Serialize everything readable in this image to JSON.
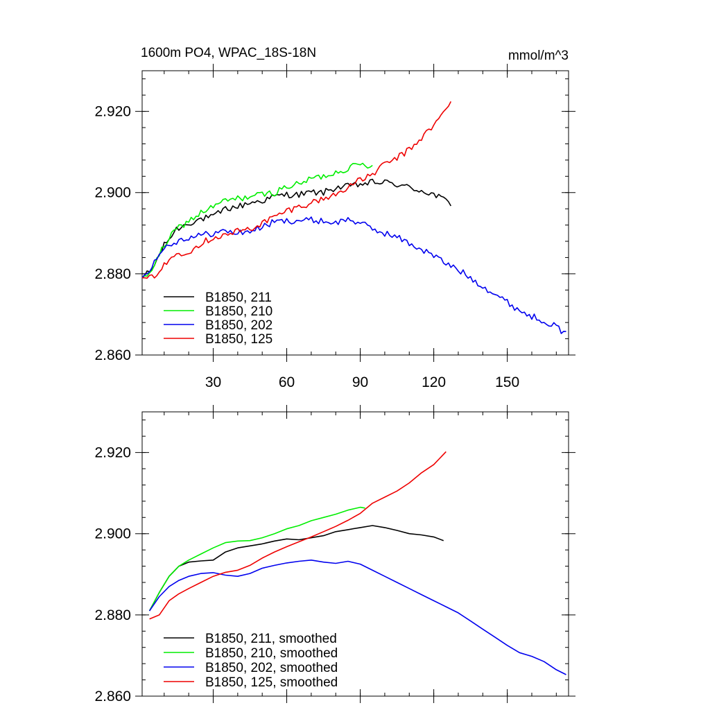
{
  "figure_title": "1600m PO4, WPAC_18S-18N",
  "units": "mmol/m^3",
  "chart_data": [
    {
      "type": "line",
      "title": "1600m PO4, WPAC_18S-18N",
      "units": "mmol/m^3",
      "xlim": [
        1,
        175
      ],
      "ylim": [
        2.86,
        2.93
      ],
      "x_ticks": [
        30,
        60,
        90,
        120,
        150
      ],
      "x_ticklabels": [
        "30",
        "60",
        "90",
        "120",
        "150"
      ],
      "y_ticks": [
        2.86,
        2.88,
        2.9,
        2.92
      ],
      "y_ticklabels": [
        "2.860",
        "2.880",
        "2.900",
        "2.920"
      ],
      "legend_position": "bottom-left",
      "noise": true,
      "series": [
        {
          "name": "B1850, 211",
          "color": "#000000",
          "points": [
            [
              1,
              2.879
            ],
            [
              5,
              2.881
            ],
            [
              10,
              2.887
            ],
            [
              15,
              2.891
            ],
            [
              20,
              2.8925
            ],
            [
              25,
              2.8935
            ],
            [
              30,
              2.894
            ],
            [
              35,
              2.896
            ],
            [
              40,
              2.8965
            ],
            [
              45,
              2.8975
            ],
            [
              50,
              2.898
            ],
            [
              55,
              2.899
            ],
            [
              60,
              2.8995
            ],
            [
              65,
              2.8995
            ],
            [
              70,
              2.9
            ],
            [
              75,
              2.9
            ],
            [
              80,
              2.9012
            ],
            [
              85,
              2.9015
            ],
            [
              90,
              2.902
            ],
            [
              95,
              2.9025
            ],
            [
              100,
              2.9025
            ],
            [
              105,
              2.902
            ],
            [
              110,
              2.9012
            ],
            [
              115,
              2.9005
            ],
            [
              120,
              2.8995
            ],
            [
              125,
              2.898
            ],
            [
              127,
              2.897
            ]
          ]
        },
        {
          "name": "B1850, 210",
          "color": "#00ee00",
          "points": [
            [
              1,
              2.879
            ],
            [
              5,
              2.881
            ],
            [
              10,
              2.887
            ],
            [
              15,
              2.891
            ],
            [
              20,
              2.893
            ],
            [
              25,
              2.895
            ],
            [
              30,
              2.8965
            ],
            [
              35,
              2.898
            ],
            [
              40,
              2.8985
            ],
            [
              45,
              2.899
            ],
            [
              50,
              2.8995
            ],
            [
              55,
              2.9
            ],
            [
              60,
              2.9015
            ],
            [
              65,
              2.902
            ],
            [
              70,
              2.9035
            ],
            [
              75,
              2.904
            ],
            [
              80,
              2.905
            ],
            [
              85,
              2.906
            ],
            [
              90,
              2.907
            ],
            [
              95,
              2.9065
            ]
          ]
        },
        {
          "name": "B1850, 202",
          "color": "#0000ee",
          "points": [
            [
              1,
              2.879
            ],
            [
              5,
              2.882
            ],
            [
              10,
              2.8865
            ],
            [
              15,
              2.888
            ],
            [
              20,
              2.889
            ],
            [
              25,
              2.8895
            ],
            [
              30,
              2.89
            ],
            [
              35,
              2.8905
            ],
            [
              40,
              2.89
            ],
            [
              45,
              2.8905
            ],
            [
              50,
              2.8915
            ],
            [
              55,
              2.8928
            ],
            [
              60,
              2.893
            ],
            [
              65,
              2.8932
            ],
            [
              70,
              2.8932
            ],
            [
              75,
              2.893
            ],
            [
              80,
              2.8925
            ],
            [
              85,
              2.8935
            ],
            [
              90,
              2.8925
            ],
            [
              95,
              2.891
            ],
            [
              100,
              2.89
            ],
            [
              105,
              2.889
            ],
            [
              110,
              2.8875
            ],
            [
              115,
              2.886
            ],
            [
              120,
              2.8845
            ],
            [
              125,
              2.8825
            ],
            [
              130,
              2.881
            ],
            [
              135,
              2.879
            ],
            [
              140,
              2.877
            ],
            [
              145,
              2.875
            ],
            [
              150,
              2.873
            ],
            [
              155,
              2.871
            ],
            [
              160,
              2.8695
            ],
            [
              165,
              2.8685
            ],
            [
              170,
              2.867
            ],
            [
              174,
              2.865
            ]
          ]
        },
        {
          "name": "B1850, 125",
          "color": "#ee0000",
          "points": [
            [
              1,
              2.879
            ],
            [
              5,
              2.879
            ],
            [
              10,
              2.882
            ],
            [
              15,
              2.885
            ],
            [
              20,
              2.8855
            ],
            [
              25,
              2.8875
            ],
            [
              30,
              2.889
            ],
            [
              35,
              2.8895
            ],
            [
              40,
              2.8905
            ],
            [
              45,
              2.891
            ],
            [
              50,
              2.8925
            ],
            [
              55,
              2.894
            ],
            [
              60,
              2.8955
            ],
            [
              65,
              2.8965
            ],
            [
              70,
              2.8975
            ],
            [
              75,
              2.8985
            ],
            [
              80,
              2.8995
            ],
            [
              85,
              2.9015
            ],
            [
              90,
              2.903
            ],
            [
              95,
              2.9045
            ],
            [
              100,
              2.907
            ],
            [
              105,
              2.9085
            ],
            [
              110,
              2.9105
            ],
            [
              115,
              2.9135
            ],
            [
              120,
              2.9165
            ],
            [
              125,
              2.9205
            ],
            [
              127,
              2.922
            ]
          ]
        }
      ]
    },
    {
      "type": "line",
      "title": "",
      "xlim": [
        1,
        175
      ],
      "ylim": [
        2.86,
        2.93
      ],
      "x_ticks": [
        30,
        60,
        90,
        120,
        150
      ],
      "x_ticklabels": [],
      "y_ticks": [
        2.86,
        2.88,
        2.9,
        2.92
      ],
      "y_ticklabels": [
        "2.860",
        "2.880",
        "2.900",
        "2.920"
      ],
      "legend_position": "bottom-left",
      "noise": false,
      "series": [
        {
          "name": "B1850, 211, smoothed",
          "color": "#000000",
          "points": [
            [
              4,
              2.881
            ],
            [
              8,
              2.8855
            ],
            [
              12,
              2.8895
            ],
            [
              16,
              2.892
            ],
            [
              20,
              2.893
            ],
            [
              25,
              2.8933
            ],
            [
              30,
              2.8935
            ],
            [
              35,
              2.8955
            ],
            [
              40,
              2.8965
            ],
            [
              45,
              2.897
            ],
            [
              50,
              2.8975
            ],
            [
              55,
              2.8982
            ],
            [
              60,
              2.8987
            ],
            [
              65,
              2.8985
            ],
            [
              70,
              2.899
            ],
            [
              75,
              2.8995
            ],
            [
              80,
              2.9005
            ],
            [
              85,
              2.901
            ],
            [
              90,
              2.9015
            ],
            [
              95,
              2.902
            ],
            [
              100,
              2.9015
            ],
            [
              105,
              2.9008
            ],
            [
              110,
              2.9
            ],
            [
              115,
              2.8997
            ],
            [
              120,
              2.8992
            ],
            [
              124,
              2.8983
            ]
          ]
        },
        {
          "name": "B1850, 210, smoothed",
          "color": "#00ee00",
          "points": [
            [
              4,
              2.881
            ],
            [
              8,
              2.8855
            ],
            [
              12,
              2.8895
            ],
            [
              16,
              2.892
            ],
            [
              20,
              2.8935
            ],
            [
              25,
              2.895
            ],
            [
              30,
              2.8965
            ],
            [
              35,
              2.8978
            ],
            [
              40,
              2.8982
            ],
            [
              45,
              2.8983
            ],
            [
              50,
              2.899
            ],
            [
              55,
              2.9
            ],
            [
              60,
              2.9012
            ],
            [
              65,
              2.902
            ],
            [
              70,
              2.9032
            ],
            [
              75,
              2.904
            ],
            [
              80,
              2.9048
            ],
            [
              85,
              2.9058
            ],
            [
              90,
              2.9065
            ],
            [
              92,
              2.9063
            ]
          ]
        },
        {
          "name": "B1850, 202, smoothed",
          "color": "#0000ee",
          "points": [
            [
              4,
              2.881
            ],
            [
              8,
              2.8845
            ],
            [
              12,
              2.887
            ],
            [
              16,
              2.8885
            ],
            [
              20,
              2.8895
            ],
            [
              25,
              2.8902
            ],
            [
              30,
              2.8904
            ],
            [
              35,
              2.8898
            ],
            [
              40,
              2.8895
            ],
            [
              45,
              2.8902
            ],
            [
              50,
              2.8915
            ],
            [
              55,
              2.8922
            ],
            [
              60,
              2.8928
            ],
            [
              65,
              2.8932
            ],
            [
              70,
              2.8935
            ],
            [
              75,
              2.893
            ],
            [
              80,
              2.8927
            ],
            [
              85,
              2.8932
            ],
            [
              90,
              2.8925
            ],
            [
              95,
              2.891
            ],
            [
              100,
              2.8895
            ],
            [
              105,
              2.888
            ],
            [
              110,
              2.8865
            ],
            [
              115,
              2.885
            ],
            [
              120,
              2.8835
            ],
            [
              125,
              2.882
            ],
            [
              130,
              2.8805
            ],
            [
              135,
              2.8785
            ],
            [
              140,
              2.8765
            ],
            [
              145,
              2.8745
            ],
            [
              150,
              2.8725
            ],
            [
              155,
              2.8707
            ],
            [
              160,
              2.8698
            ],
            [
              165,
              2.8685
            ],
            [
              170,
              2.8665
            ],
            [
              174,
              2.8653
            ]
          ]
        },
        {
          "name": "B1850, 125, smoothed",
          "color": "#ee0000",
          "points": [
            [
              4,
              2.879
            ],
            [
              8,
              2.88
            ],
            [
              12,
              2.8835
            ],
            [
              16,
              2.8852
            ],
            [
              20,
              2.8865
            ],
            [
              25,
              2.888
            ],
            [
              30,
              2.8895
            ],
            [
              35,
              2.8905
            ],
            [
              40,
              2.891
            ],
            [
              45,
              2.8922
            ],
            [
              50,
              2.894
            ],
            [
              55,
              2.8955
            ],
            [
              60,
              2.8968
            ],
            [
              65,
              2.898
            ],
            [
              70,
              2.8992
            ],
            [
              75,
              2.9005
            ],
            [
              80,
              2.9018
            ],
            [
              85,
              2.9033
            ],
            [
              90,
              2.905
            ],
            [
              95,
              2.9075
            ],
            [
              100,
              2.909
            ],
            [
              105,
              2.9105
            ],
            [
              110,
              2.9125
            ],
            [
              115,
              2.915
            ],
            [
              120,
              2.917
            ],
            [
              125,
              2.9202
            ]
          ]
        }
      ]
    }
  ]
}
